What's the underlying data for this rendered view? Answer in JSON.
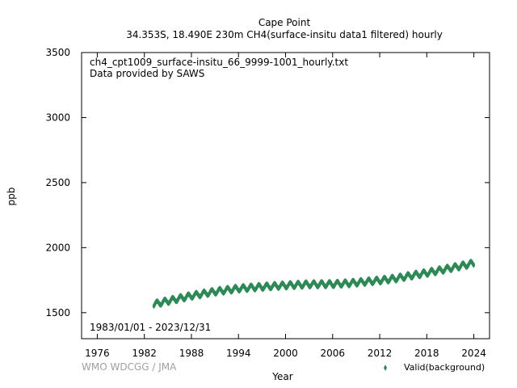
{
  "header": {
    "title": "Cape Point",
    "subtitle": "34.353S, 18.490E 230m    CH4(surface-insitu data1 filtered) hourly"
  },
  "annotations": {
    "filename": "ch4_cpt1009_surface-insitu_66_9999-1001_hourly.txt",
    "provider": "Data provided by SAWS",
    "period": "1983/01/01 - 2023/12/31"
  },
  "watermark": "WMO WDCGG / JMA",
  "colors": {
    "series": "#2e8b57",
    "axis": "#000000",
    "watermark": "#a0a0a0"
  },
  "chart_data": {
    "type": "scatter",
    "xlabel": "Year",
    "ylabel": "ppb",
    "xlim": [
      1974,
      2026
    ],
    "ylim": [
      1300,
      3500
    ],
    "xticks": [
      1976,
      1982,
      1988,
      1994,
      2000,
      2006,
      2012,
      2018,
      2024
    ],
    "yticks": [
      1500,
      2000,
      2500,
      3000,
      3500
    ],
    "grid": false,
    "legend_position": "bottom-right",
    "series": [
      {
        "name": "Valid(background)",
        "marker": "diamond",
        "seasonal_amplitude_ppb": 18,
        "trend": {
          "x": [
            1983.2,
            1985,
            1988,
            1991,
            1994,
            1997,
            2000,
            2003,
            2006,
            2008,
            2010,
            2012,
            2014,
            2016,
            2018,
            2020,
            2022,
            2024
          ],
          "y": [
            1565,
            1590,
            1630,
            1662,
            1686,
            1699,
            1710,
            1718,
            1720,
            1726,
            1737,
            1748,
            1763,
            1785,
            1806,
            1830,
            1855,
            1880
          ]
        }
      }
    ]
  }
}
